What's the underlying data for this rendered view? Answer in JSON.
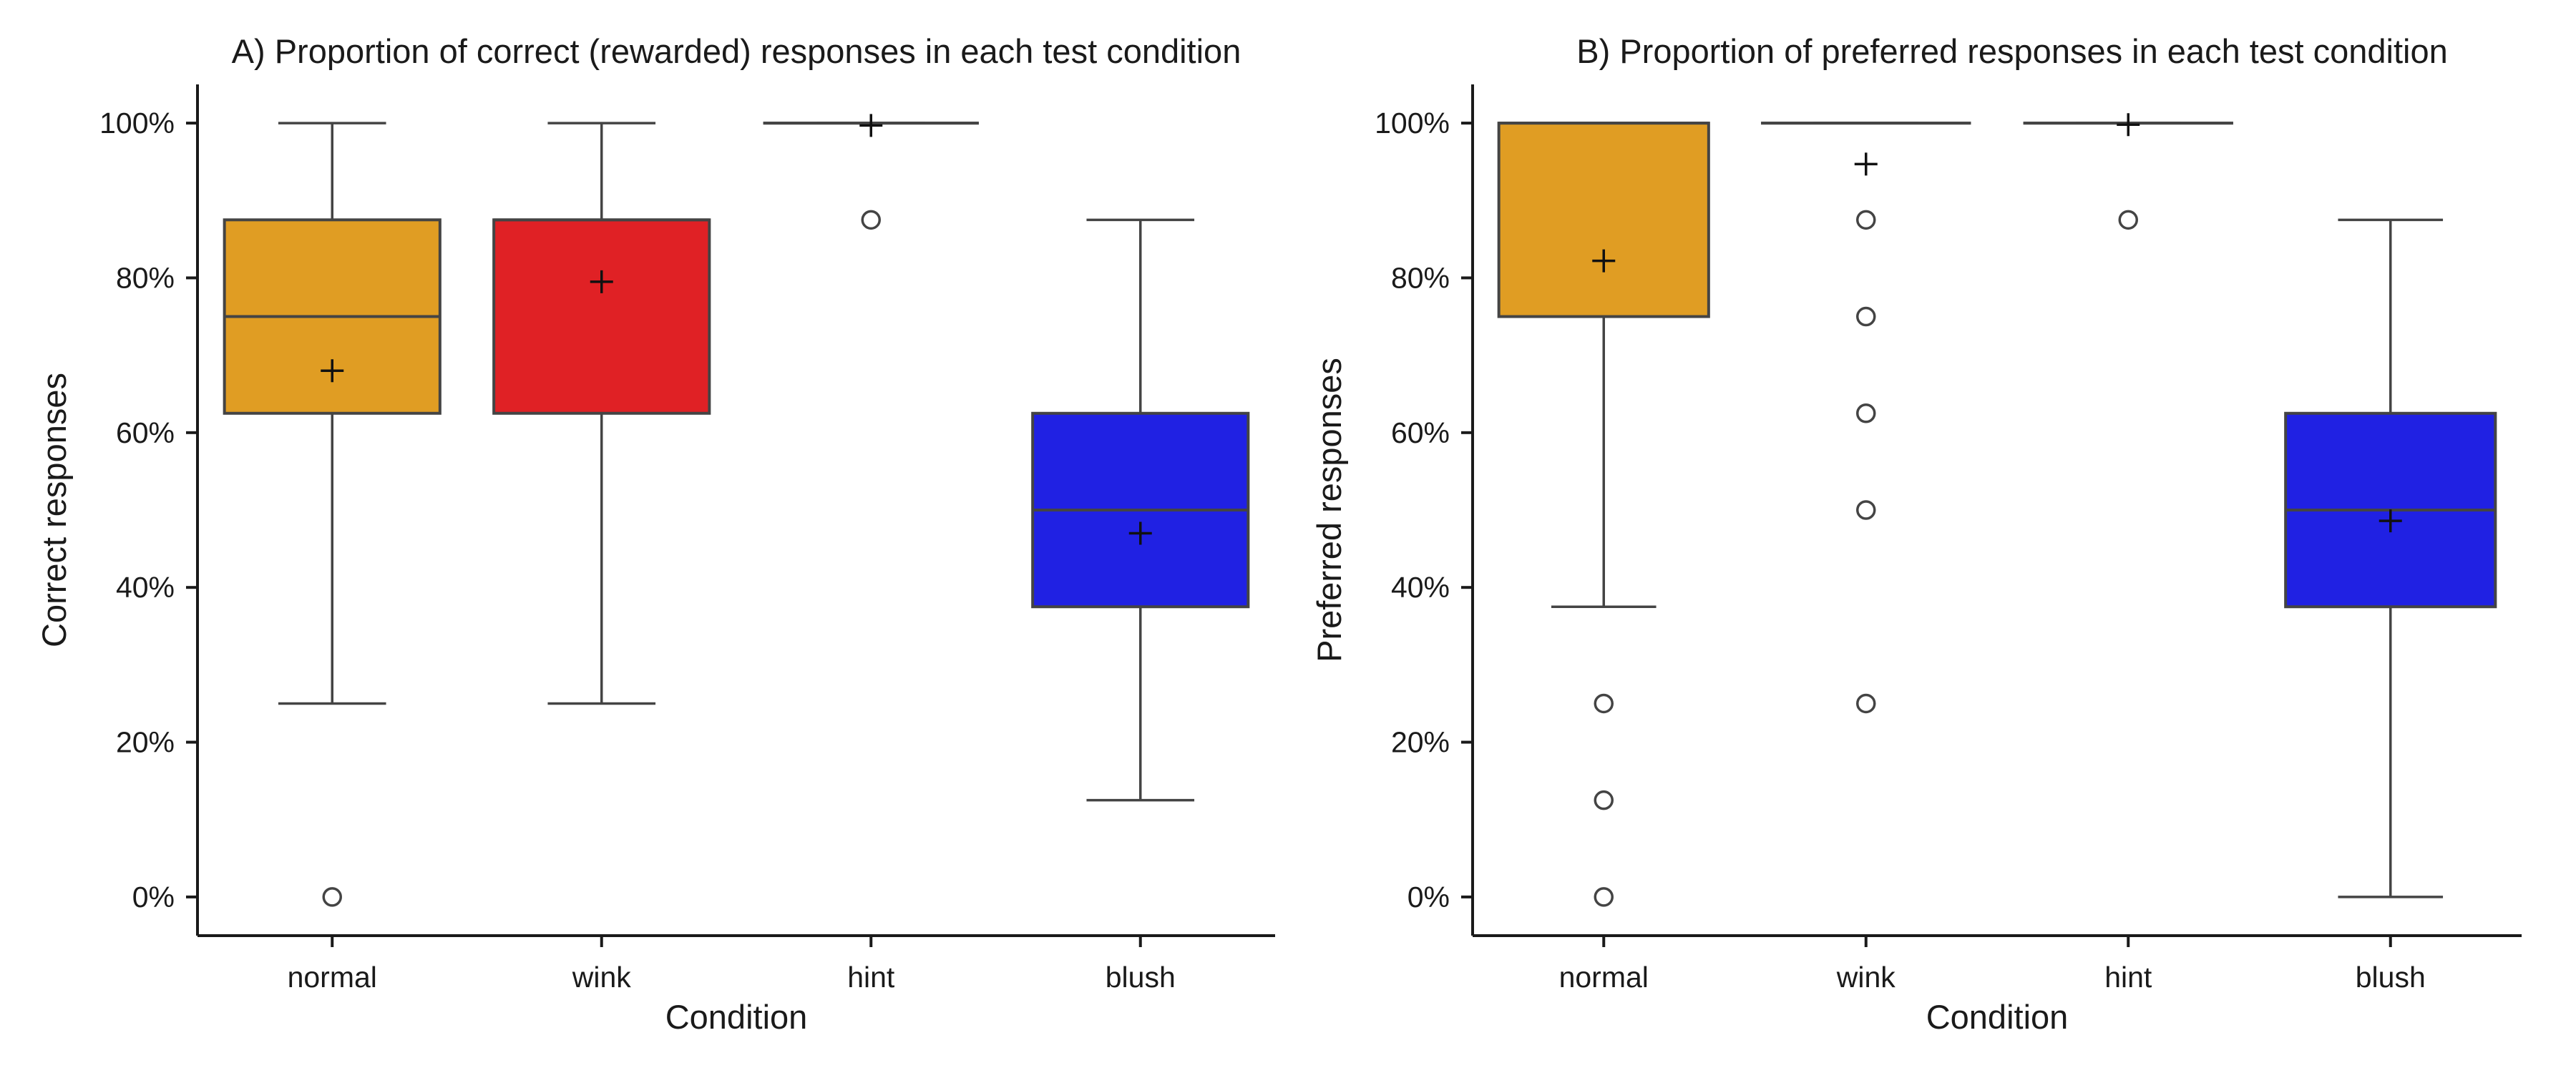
{
  "chart_data": [
    {
      "type": "box",
      "title": "A) Proportion of correct (rewarded) responses in each test condition",
      "xlabel": "Condition",
      "ylabel": "Correct responses",
      "ylim": [
        -5,
        105
      ],
      "yticks": [
        0,
        20,
        40,
        60,
        80,
        100
      ],
      "ytick_labels": [
        "0%",
        "20%",
        "40%",
        "60%",
        "80%",
        "100%"
      ],
      "grid": false,
      "categories": [
        "normal",
        "wink",
        "hint",
        "blush"
      ],
      "boxes": [
        {
          "category": "normal",
          "color": "#E09D23",
          "q1": 62.5,
          "median": 75,
          "q3": 87.5,
          "whisker_low": 25,
          "whisker_high": 100,
          "mean": 68,
          "fliers": [
            0
          ]
        },
        {
          "category": "wink",
          "color": "#E02125",
          "q1": 62.5,
          "median": 87.5,
          "q3": 87.5,
          "whisker_low": 25,
          "whisker_high": 100,
          "mean": 79.5,
          "fliers": []
        },
        {
          "category": "hint",
          "color": "#E09D23",
          "q1": 100,
          "median": 100,
          "q3": 100,
          "whisker_low": 100,
          "whisker_high": 100,
          "mean": 99.7,
          "fliers": [
            87.5
          ]
        },
        {
          "category": "blush",
          "color": "#2021E3",
          "q1": 37.5,
          "median": 50,
          "q3": 62.5,
          "whisker_low": 12.5,
          "whisker_high": 87.5,
          "mean": 47,
          "fliers": []
        }
      ]
    },
    {
      "type": "box",
      "title": "B) Proportion of preferred responses in each test condition",
      "xlabel": "Condition",
      "ylabel": "Preferred responses",
      "ylim": [
        -5,
        105
      ],
      "yticks": [
        0,
        20,
        40,
        60,
        80,
        100
      ],
      "ytick_labels": [
        "0%",
        "20%",
        "40%",
        "60%",
        "80%",
        "100%"
      ],
      "grid": false,
      "categories": [
        "normal",
        "wink",
        "hint",
        "blush"
      ],
      "boxes": [
        {
          "category": "normal",
          "color": "#E09D23",
          "q1": 75,
          "median": 100,
          "q3": 100,
          "whisker_low": 37.5,
          "whisker_high": 100,
          "mean": 82.2,
          "fliers": [
            25,
            12.5,
            0
          ]
        },
        {
          "category": "wink",
          "color": "#E02125",
          "q1": 100,
          "median": 100,
          "q3": 100,
          "whisker_low": 100,
          "whisker_high": 100,
          "mean": 94.7,
          "fliers": [
            87.5,
            75,
            62.5,
            50,
            25
          ]
        },
        {
          "category": "hint",
          "color": "#E09D23",
          "q1": 100,
          "median": 100,
          "q3": 100,
          "whisker_low": 100,
          "whisker_high": 100,
          "mean": 99.8,
          "fliers": [
            87.5
          ]
        },
        {
          "category": "blush",
          "color": "#2021E3",
          "q1": 37.5,
          "median": 50,
          "q3": 62.5,
          "whisker_low": 0,
          "whisker_high": 87.5,
          "mean": 48.6,
          "fliers": []
        }
      ]
    }
  ]
}
